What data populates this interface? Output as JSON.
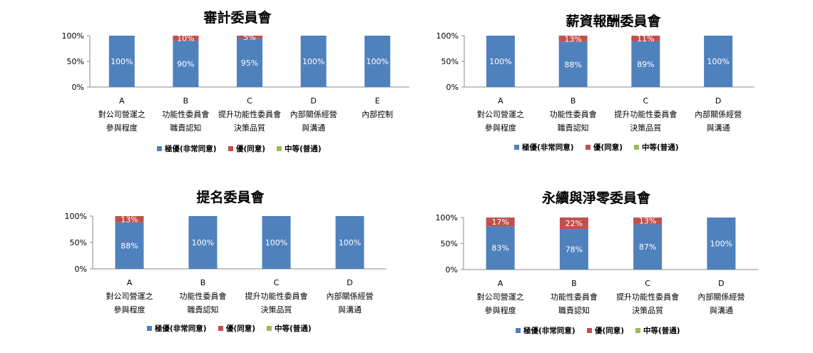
{
  "colors": {
    "excellent": "#4f81bd",
    "good": "#c0504d",
    "average": "#9bbb59"
  },
  "legend": [
    "極優(非常同意)",
    "優(同意)",
    "中等(普通)"
  ],
  "chart_data": [
    {
      "type": "bar",
      "stacked": true,
      "title": "審計委員會",
      "yticks": [
        "100%",
        "50%",
        "0%"
      ],
      "ylim": [
        0,
        100
      ],
      "categories": [
        [
          "A",
          "對公司營運之",
          "參與程度"
        ],
        [
          "B",
          "功能性委員會",
          "職責認知"
        ],
        [
          "C",
          "提升功能性委員會",
          "決策品質"
        ],
        [
          "D",
          "內部關係經營",
          "與溝通"
        ],
        [
          "E",
          "內部控制",
          ""
        ]
      ],
      "series": [
        {
          "name": "極優(非常同意)",
          "values": [
            100,
            90,
            95,
            100,
            100
          ],
          "labels": [
            "100%",
            "90%",
            "95%",
            "100%",
            "100%"
          ]
        },
        {
          "name": "優(同意)",
          "values": [
            0,
            10,
            5,
            0,
            0
          ],
          "labels": [
            "",
            "10%",
            "5%",
            "",
            ""
          ]
        },
        {
          "name": "中等(普通)",
          "values": [
            0,
            0,
            0,
            0,
            0
          ],
          "labels": [
            "",
            "",
            "",
            "",
            ""
          ]
        }
      ],
      "legend_position": "bottom"
    },
    {
      "type": "bar",
      "stacked": true,
      "title": "薪資報酬委員會",
      "yticks": [
        "100%",
        "50%",
        "0%"
      ],
      "ylim": [
        0,
        100
      ],
      "categories": [
        [
          "A",
          "對公司營運之",
          "參與程度"
        ],
        [
          "B",
          "功能性委員會",
          "職責認知"
        ],
        [
          "C",
          "提升功能性委員會",
          "決策品質"
        ],
        [
          "D",
          "內部關係經營",
          "與溝通"
        ]
      ],
      "series": [
        {
          "name": "極優(非常同意)",
          "values": [
            100,
            88,
            89,
            100
          ],
          "labels": [
            "100%",
            "88%",
            "89%",
            "100%"
          ]
        },
        {
          "name": "優(同意)",
          "values": [
            0,
            13,
            11,
            0
          ],
          "labels": [
            "",
            "13%",
            "11%",
            ""
          ]
        },
        {
          "name": "中等(普通)",
          "values": [
            0,
            0,
            0,
            0
          ],
          "labels": [
            "",
            "",
            "",
            ""
          ]
        }
      ],
      "legend_position": "bottom"
    },
    {
      "type": "bar",
      "stacked": true,
      "title": "提名委員會",
      "yticks": [
        "100%",
        "50%",
        "0%"
      ],
      "ylim": [
        0,
        100
      ],
      "categories": [
        [
          "A",
          "對公司營運之",
          "參與程度"
        ],
        [
          "B",
          "功能性委員會",
          "職責認知"
        ],
        [
          "C",
          "提升功能性委員會",
          "決策品質"
        ],
        [
          "D",
          "內部關係經營",
          "與溝通"
        ]
      ],
      "series": [
        {
          "name": "極優(非常同意)",
          "values": [
            88,
            100,
            100,
            100
          ],
          "labels": [
            "88%",
            "100%",
            "100%",
            "100%"
          ]
        },
        {
          "name": "優(同意)",
          "values": [
            13,
            0,
            0,
            0
          ],
          "labels": [
            "13%",
            "",
            "",
            ""
          ]
        },
        {
          "name": "中等(普通)",
          "values": [
            0,
            0,
            0,
            0
          ],
          "labels": [
            "",
            "",
            "",
            ""
          ]
        }
      ],
      "legend_position": "bottom"
    },
    {
      "type": "bar",
      "stacked": true,
      "title": "永續與淨零委員會",
      "yticks": [
        "100%",
        "50%",
        "0%"
      ],
      "ylim": [
        0,
        100
      ],
      "categories": [
        [
          "A",
          "對公司營運之",
          "參與程度"
        ],
        [
          "B",
          "功能性委員會",
          "職責認知"
        ],
        [
          "C",
          "提升功能性委員會",
          "決策品質"
        ],
        [
          "D",
          "內部關係經營",
          "與溝通"
        ]
      ],
      "series": [
        {
          "name": "極優(非常同意)",
          "values": [
            83,
            78,
            87,
            100
          ],
          "labels": [
            "83%",
            "78%",
            "87%",
            "100%"
          ]
        },
        {
          "name": "優(同意)",
          "values": [
            17,
            22,
            13,
            0
          ],
          "labels": [
            "17%",
            "22%",
            "13%",
            ""
          ]
        },
        {
          "name": "中等(普通)",
          "values": [
            0,
            0,
            0,
            0
          ],
          "labels": [
            "",
            "",
            "",
            ""
          ]
        }
      ],
      "legend_position": "bottom"
    }
  ]
}
